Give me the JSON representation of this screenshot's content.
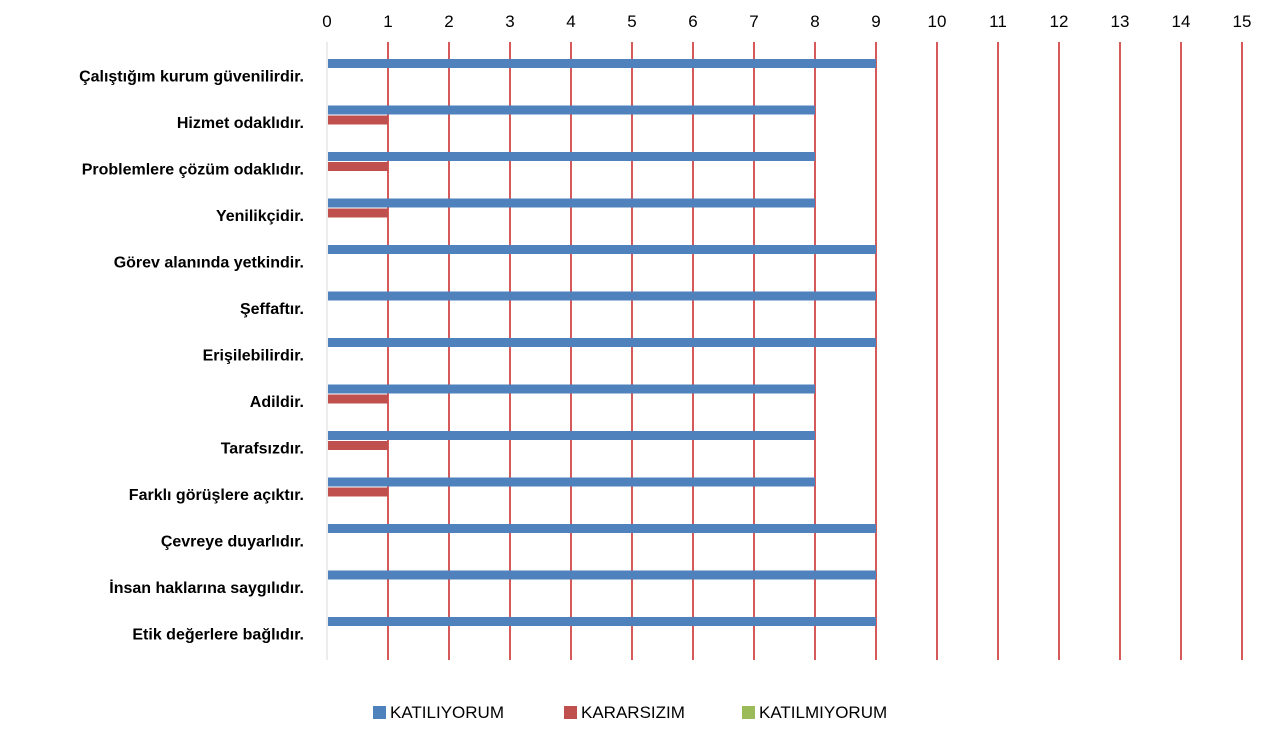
{
  "chart_data": {
    "type": "bar",
    "orientation": "horizontal",
    "categories": [
      "Çalıştığım kurum güvenilirdir.",
      "Hizmet odaklıdır.",
      "Problemlere çözüm odaklıdır.",
      "Yenilikçidir.",
      "Görev alanında yetkindir.",
      "Şeffaftır.",
      "Erişilebilirdir.",
      "Adildir.",
      "Tarafsızdır.",
      "Farklı görüşlere açıktır.",
      "Çevreye duyarlıdır.",
      "İnsan haklarına saygılıdır.",
      "Etik değerlere bağlıdır."
    ],
    "series": [
      {
        "name": "KATILIYORUM",
        "color": "#4f81bd",
        "values": [
          9,
          8,
          8,
          8,
          9,
          9,
          9,
          8,
          8,
          8,
          9,
          9,
          9
        ]
      },
      {
        "name": "KARARSIZIM",
        "color": "#c0504d",
        "values": [
          0,
          1,
          1,
          1,
          0,
          0,
          0,
          1,
          1,
          1,
          0,
          0,
          0
        ]
      },
      {
        "name": "KATILMIYORUM",
        "color": "#9bbb59",
        "values": [
          0,
          0,
          0,
          0,
          0,
          0,
          0,
          0,
          0,
          0,
          0,
          0,
          0
        ]
      }
    ],
    "xlim": [
      0,
      15
    ],
    "xticks": [
      "0",
      "1",
      "2",
      "3",
      "4",
      "5",
      "6",
      "7",
      "8",
      "9",
      "10",
      "11",
      "12",
      "13",
      "14",
      "15"
    ],
    "x_axis_position": "top",
    "gridline_color": "#c00000",
    "grid": true,
    "legend_position": "bottom"
  }
}
